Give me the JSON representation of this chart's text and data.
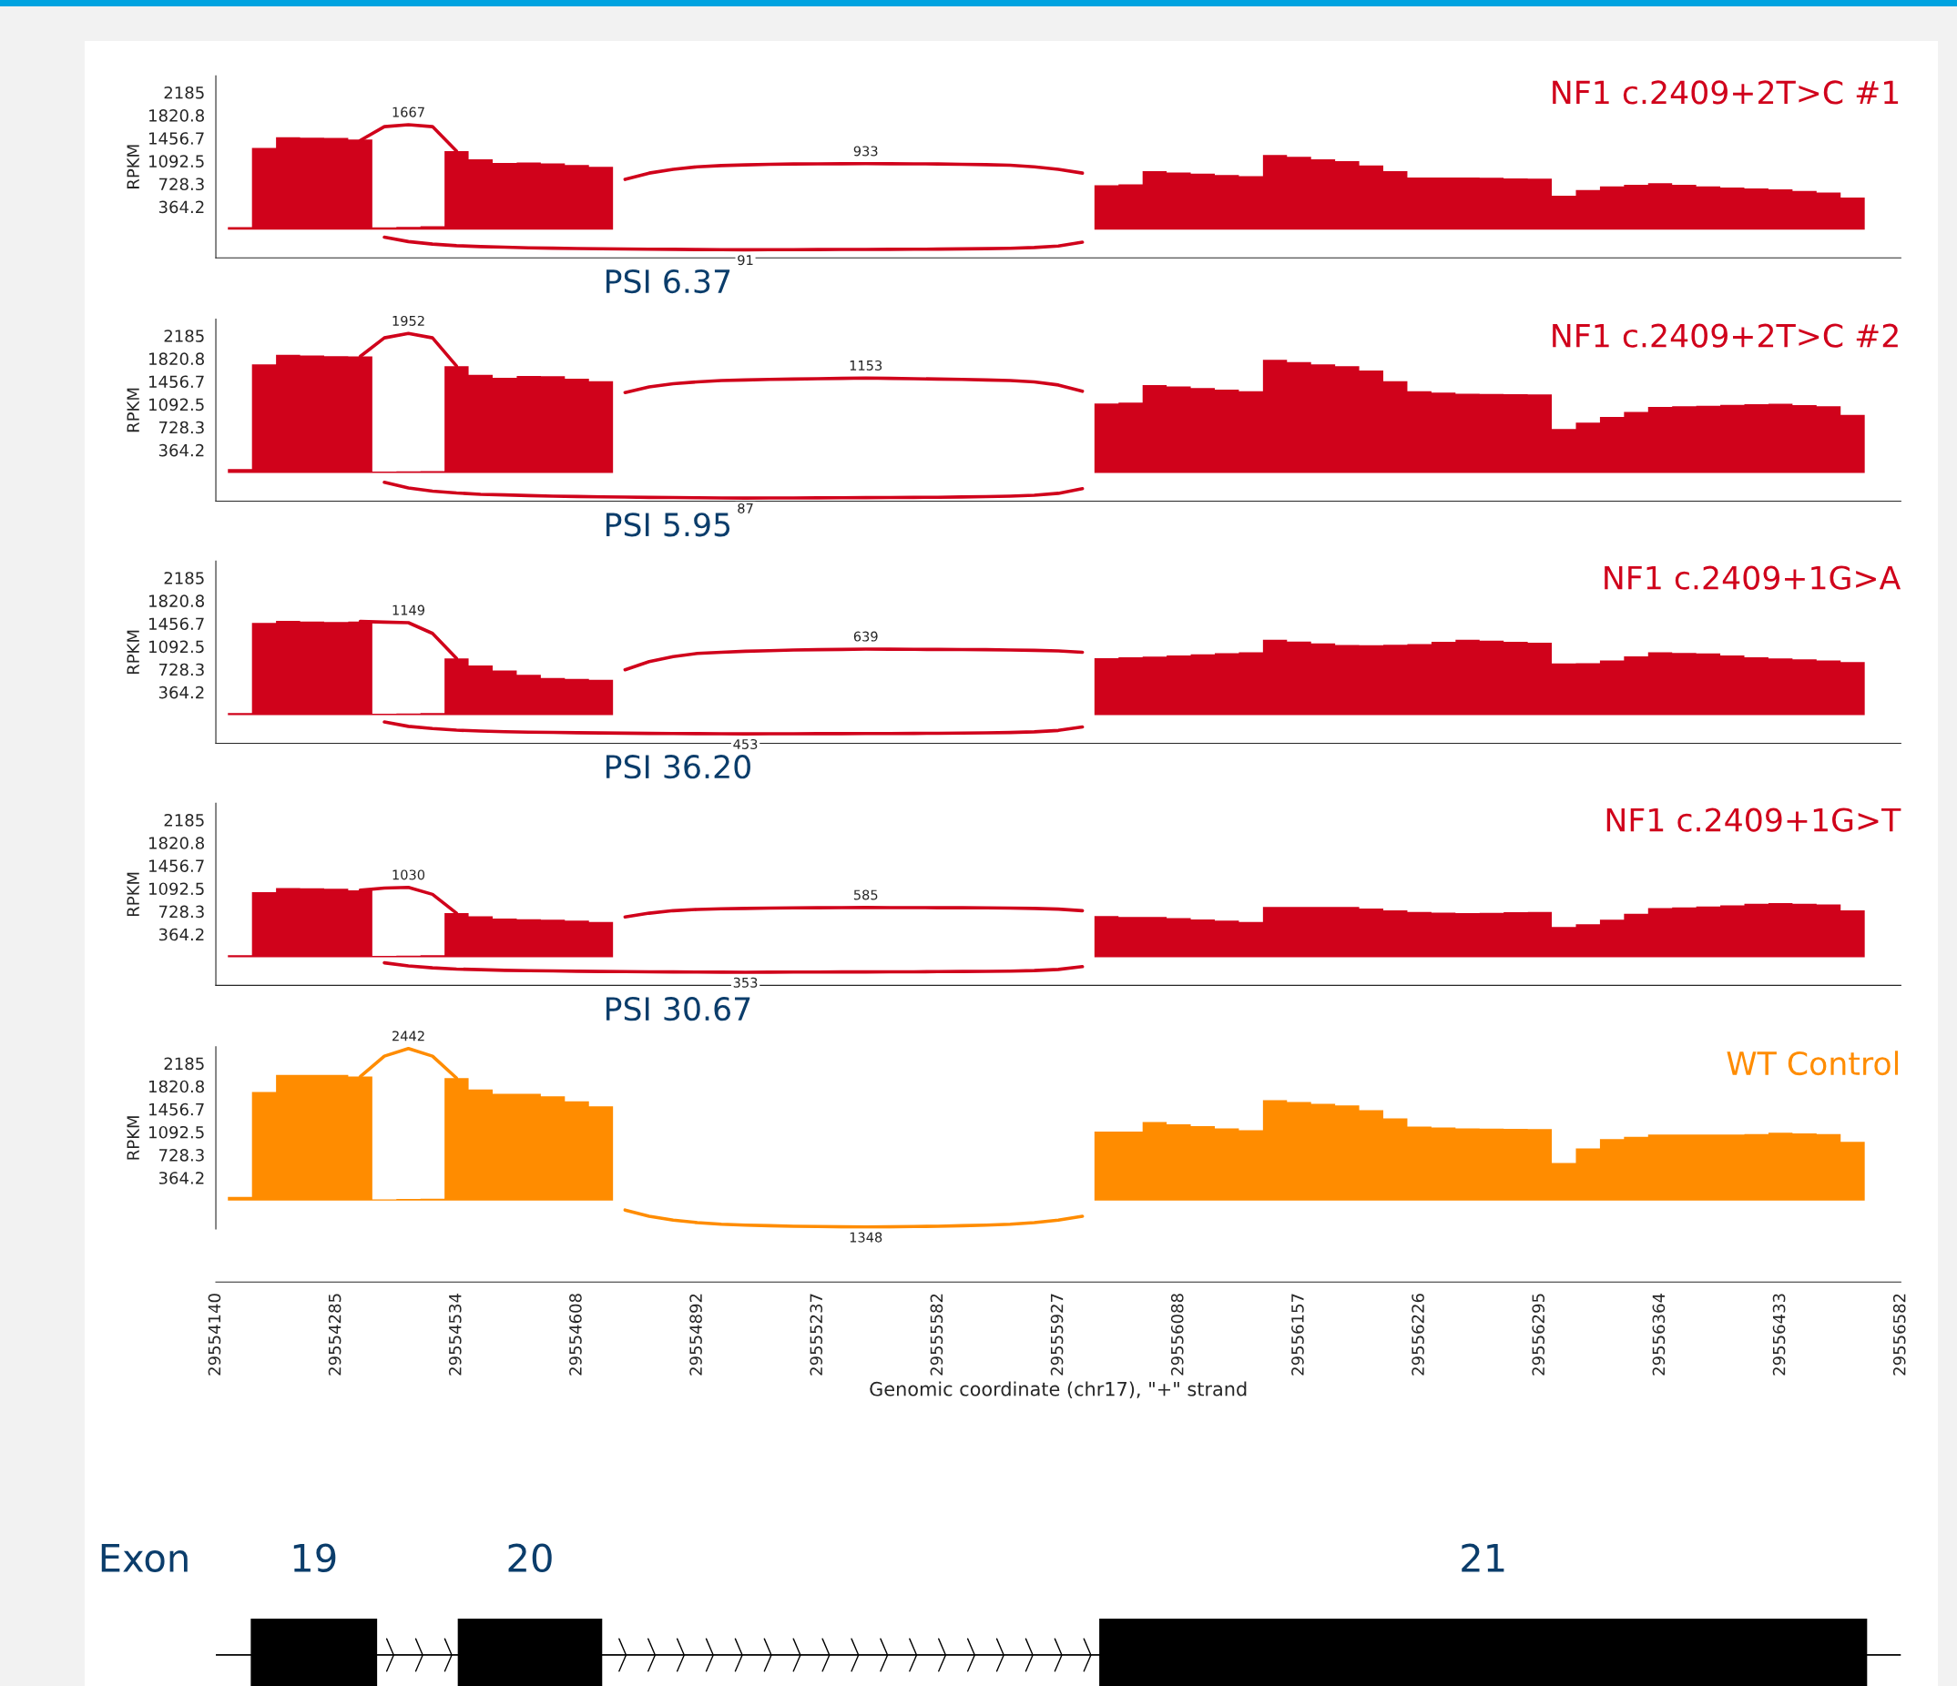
{
  "chart_data": [
    {
      "type": "area",
      "title": "NF1 c.2409+2T>C #1",
      "ylabel": "RPKM",
      "tick_labels": "y",
      "ylim": [
        -450,
        2450
      ],
      "yticks": [
        364.2,
        728.3,
        1092.5,
        1456.7,
        1820.8,
        2185
      ],
      "categories": [
        "29554140",
        null,
        null,
        null,
        null,
        "29554285",
        null,
        null,
        null,
        null,
        "29554534",
        null,
        null,
        null,
        null,
        "29554608",
        null,
        null,
        null,
        null,
        "29554892",
        null,
        null,
        null,
        null,
        "29555237",
        null,
        null,
        null,
        null,
        "29555582",
        null,
        null,
        null,
        null,
        "29555927",
        null,
        null,
        null,
        null,
        "29556088",
        null,
        null,
        null,
        null,
        "29556157",
        null,
        null,
        null,
        null,
        "29556226",
        null,
        null,
        null,
        null,
        "29556295",
        null,
        null,
        null,
        null,
        "29556364",
        null,
        null,
        null,
        null,
        "29556433",
        null,
        null,
        null,
        null,
        "29556582"
      ],
      "series": [
        {
          "color": "#d0021b",
          "values": [
            0,
            40,
            1300,
            1470,
            1465,
            1460,
            1435,
            35,
            45,
            55,
            1250,
            1120,
            1060,
            1070,
            1055,
            1030,
            1000,
            0,
            0,
            0,
            0,
            0,
            0,
            0,
            0,
            0,
            0,
            0,
            0,
            0,
            0,
            0,
            0,
            0,
            0,
            0,
            0,
            705,
            720,
            930,
            910,
            890,
            870,
            850,
            1190,
            1160,
            1120,
            1090,
            1020,
            930,
            830,
            830,
            830,
            825,
            815,
            810,
            540,
            630,
            690,
            715,
            740,
            715,
            690,
            670,
            655,
            640,
            615,
            590,
            510,
            0,
            0
          ]
        },
        {
          "type": "line",
          "color": "#d0021b",
          "values": [
            null,
            null,
            null,
            null,
            null,
            null,
            1420,
            1640,
            1670,
            1640,
            1250,
            null,
            null,
            null,
            null,
            null,
            null,
            null,
            null,
            null,
            null,
            null,
            null,
            null,
            null,
            null,
            null,
            null,
            null,
            null,
            null,
            null,
            null,
            null,
            null,
            null,
            null,
            null,
            null,
            null,
            null,
            null,
            null,
            null,
            null,
            null,
            null,
            null,
            null,
            null,
            null,
            null,
            null,
            null,
            null,
            null,
            null,
            null,
            null,
            null,
            null,
            null,
            null,
            null,
            null,
            null,
            null,
            null,
            null,
            null,
            null
          ]
        },
        {
          "type": "line",
          "color": "#d0021b",
          "values": [
            null,
            null,
            null,
            null,
            null,
            null,
            null,
            null,
            null,
            null,
            null,
            null,
            null,
            null,
            null,
            null,
            null,
            800,
            900,
            960,
            1000,
            1020,
            1030,
            1040,
            1045,
            1048,
            1049,
            1050,
            1049,
            1048,
            1045,
            1040,
            1035,
            1025,
            1000,
            960,
            900,
            null,
            null,
            null,
            null,
            null,
            null,
            null,
            null,
            null,
            null,
            null,
            null,
            null,
            null,
            null,
            null,
            null,
            null,
            null,
            null,
            null,
            null,
            null,
            null,
            null,
            null,
            null,
            null,
            null,
            null,
            null,
            null,
            null,
            null
          ]
        },
        {
          "type": "line",
          "color": "#d0021b",
          "values": [
            null,
            null,
            null,
            null,
            null,
            null,
            null,
            -120,
            -190,
            -230,
            -255,
            -270,
            -280,
            -290,
            -295,
            -300,
            -305,
            -308,
            -311,
            -314,
            -317,
            -319,
            -320,
            -319,
            -318,
            -317,
            -316,
            -315,
            -314,
            -312,
            -310,
            -307,
            -303,
            -297,
            -285,
            -260,
            -200,
            null,
            null,
            null,
            null,
            null,
            null,
            null,
            null,
            null,
            null,
            null,
            null,
            null,
            null,
            null,
            null,
            null,
            null,
            null,
            null,
            null,
            null,
            null,
            null,
            null,
            null,
            null,
            null,
            null,
            null,
            null,
            null,
            null,
            null
          ]
        }
      ],
      "annotations": [
        "1667",
        "933",
        "91",
        "PSI 6.37"
      ]
    },
    {
      "type": "area",
      "title": "NF1 c.2409+2T>C #2",
      "ylabel": "RPKM",
      "tick_labels": "y",
      "ylim": [
        -450,
        2450
      ],
      "yticks": [
        364.2,
        728.3,
        1092.5,
        1456.7,
        1820.8,
        2185
      ],
      "categories": [
        "29554140",
        null,
        null,
        null,
        null,
        "29554285",
        null,
        null,
        null,
        null,
        "29554534",
        null,
        null,
        null,
        null,
        "29554608",
        null,
        null,
        null,
        null,
        "29554892",
        null,
        null,
        null,
        null,
        "29555237",
        null,
        null,
        null,
        null,
        "29555582",
        null,
        null,
        null,
        null,
        "29555927",
        null,
        null,
        null,
        null,
        "29556088",
        null,
        null,
        null,
        null,
        "29556157",
        null,
        null,
        null,
        null,
        "29556226",
        null,
        null,
        null,
        null,
        "29556295",
        null,
        null,
        null,
        null,
        "29556364",
        null,
        null,
        null,
        null,
        "29556433",
        null,
        null,
        null,
        null,
        "29556582"
      ],
      "series": [
        {
          "color": "#d0021b",
          "values": [
            0,
            60,
            1730,
            1880,
            1870,
            1860,
            1855,
            20,
            25,
            30,
            1700,
            1560,
            1515,
            1545,
            1540,
            1500,
            1460,
            0,
            0,
            0,
            0,
            0,
            0,
            0,
            0,
            0,
            0,
            0,
            0,
            0,
            0,
            0,
            0,
            0,
            0,
            0,
            0,
            1105,
            1120,
            1400,
            1375,
            1350,
            1325,
            1300,
            1800,
            1765,
            1730,
            1700,
            1630,
            1460,
            1300,
            1280,
            1260,
            1257,
            1253,
            1250,
            700,
            800,
            890,
            970,
            1050,
            1060,
            1070,
            1085,
            1095,
            1100,
            1080,
            1060,
            925,
            0,
            0
          ]
        },
        {
          "type": "line",
          "color": "#d0021b",
          "values": [
            null,
            null,
            null,
            null,
            null,
            null,
            1855,
            2150,
            2220,
            2150,
            1700,
            null,
            null,
            null,
            null,
            null,
            null,
            null,
            null,
            null,
            null,
            null,
            null,
            null,
            null,
            null,
            null,
            null,
            null,
            null,
            null,
            null,
            null,
            null,
            null,
            null,
            null,
            null,
            null,
            null,
            null,
            null,
            null,
            null,
            null,
            null,
            null,
            null,
            null,
            null,
            null,
            null,
            null,
            null,
            null,
            null,
            null,
            null,
            null,
            null,
            null,
            null,
            null,
            null,
            null,
            null,
            null,
            null,
            null,
            null,
            null
          ]
        },
        {
          "type": "line",
          "color": "#d0021b",
          "values": [
            null,
            null,
            null,
            null,
            null,
            null,
            null,
            null,
            null,
            null,
            null,
            null,
            null,
            null,
            null,
            null,
            null,
            1280,
            1370,
            1420,
            1450,
            1470,
            1480,
            1490,
            1495,
            1500,
            1505,
            1510,
            1505,
            1500,
            1495,
            1490,
            1480,
            1470,
            1450,
            1400,
            1300,
            null,
            null,
            null,
            null,
            null,
            null,
            null,
            null,
            null,
            null,
            null,
            null,
            null,
            null,
            null,
            null,
            null,
            null,
            null,
            null,
            null,
            null,
            null,
            null,
            null,
            null,
            null,
            null,
            null,
            null,
            null,
            null,
            null,
            null
          ]
        },
        {
          "type": "line",
          "color": "#d0021b",
          "values": [
            null,
            null,
            null,
            null,
            null,
            null,
            null,
            -150,
            -240,
            -290,
            -320,
            -340,
            -350,
            -360,
            -370,
            -375,
            -380,
            -385,
            -389,
            -392,
            -395,
            -398,
            -400,
            -399,
            -398,
            -397,
            -396,
            -394,
            -392,
            -390,
            -387,
            -383,
            -378,
            -370,
            -355,
            -325,
            -250,
            null,
            null,
            null,
            null,
            null,
            null,
            null,
            null,
            null,
            null,
            null,
            null,
            null,
            null,
            null,
            null,
            null,
            null,
            null,
            null,
            null,
            null,
            null,
            null,
            null,
            null,
            null,
            null,
            null,
            null,
            null,
            null,
            null,
            null
          ]
        }
      ],
      "annotations": [
        "1952",
        "1153",
        "87",
        "PSI 5.95"
      ]
    },
    {
      "type": "area",
      "title": "NF1 c.2409+1G>A",
      "ylabel": "RPKM",
      "tick_labels": "y",
      "ylim": [
        -450,
        2450
      ],
      "yticks": [
        364.2,
        728.3,
        1092.5,
        1456.7,
        1820.8,
        2185
      ],
      "categories": [
        "29554140",
        null,
        null,
        null,
        null,
        "29554285",
        null,
        null,
        null,
        null,
        "29554534",
        null,
        null,
        null,
        null,
        "29554608",
        null,
        null,
        null,
        null,
        "29554892",
        null,
        null,
        null,
        null,
        "29555237",
        null,
        null,
        null,
        null,
        "29555582",
        null,
        null,
        null,
        null,
        "29555927",
        null,
        null,
        null,
        null,
        "29556088",
        null,
        null,
        null,
        null,
        "29556157",
        null,
        null,
        null,
        null,
        "29556226",
        null,
        null,
        null,
        null,
        "29556295",
        null,
        null,
        null,
        null,
        "29556364",
        null,
        null,
        null,
        null,
        "29556433",
        null,
        null,
        null,
        null,
        "29556582"
      ],
      "series": [
        {
          "color": "#d0021b",
          "values": [
            0,
            30,
            1465,
            1500,
            1490,
            1480,
            1490,
            20,
            25,
            30,
            900,
            790,
            710,
            640,
            590,
            575,
            560,
            0,
            0,
            0,
            0,
            0,
            0,
            0,
            0,
            0,
            0,
            0,
            0,
            0,
            0,
            0,
            0,
            0,
            0,
            0,
            0,
            905,
            920,
            930,
            950,
            965,
            985,
            1000,
            1200,
            1170,
            1140,
            1115,
            1110,
            1120,
            1130,
            1165,
            1200,
            1185,
            1165,
            1150,
            820,
            825,
            870,
            935,
            1000,
            990,
            980,
            950,
            920,
            900,
            885,
            870,
            845,
            0,
            0
          ]
        },
        {
          "type": "line",
          "color": "#d0021b",
          "values": [
            null,
            null,
            null,
            null,
            null,
            null,
            1490,
            1480,
            1470,
            1300,
            900,
            null,
            null,
            null,
            null,
            null,
            null,
            null,
            null,
            null,
            null,
            null,
            null,
            null,
            null,
            null,
            null,
            null,
            null,
            null,
            null,
            null,
            null,
            null,
            null,
            null,
            null,
            null,
            null,
            null,
            null,
            null,
            null,
            null,
            null,
            null,
            null,
            null,
            null,
            null,
            null,
            null,
            null,
            null,
            null,
            null,
            null,
            null,
            null,
            null,
            null,
            null,
            null,
            null,
            null,
            null,
            null,
            null,
            null,
            null,
            null
          ]
        },
        {
          "type": "line",
          "color": "#d0021b",
          "values": [
            null,
            null,
            null,
            null,
            null,
            null,
            null,
            null,
            null,
            null,
            null,
            null,
            null,
            null,
            null,
            null,
            null,
            720,
            850,
            930,
            980,
            1000,
            1015,
            1025,
            1035,
            1040,
            1045,
            1050,
            1048,
            1046,
            1044,
            1042,
            1040,
            1035,
            1030,
            1020,
            1000,
            null,
            null,
            null,
            null,
            null,
            null,
            null,
            null,
            null,
            null,
            null,
            null,
            null,
            null,
            null,
            null,
            null,
            null,
            null,
            null,
            null,
            null,
            null,
            null,
            null,
            null,
            null,
            null,
            null,
            null,
            null,
            null,
            null,
            null
          ]
        },
        {
          "type": "line",
          "color": "#d0021b",
          "values": [
            null,
            null,
            null,
            null,
            null,
            null,
            null,
            -110,
            -180,
            -215,
            -240,
            -255,
            -265,
            -272,
            -277,
            -282,
            -286,
            -289,
            -292,
            -294,
            -296,
            -298,
            -300,
            -299,
            -298,
            -297,
            -296,
            -295,
            -294,
            -292,
            -290,
            -287,
            -284,
            -278,
            -267,
            -245,
            -190,
            null,
            null,
            null,
            null,
            null,
            null,
            null,
            null,
            null,
            null,
            null,
            null,
            null,
            null,
            null,
            null,
            null,
            null,
            null,
            null,
            null,
            null,
            null,
            null,
            null,
            null,
            null,
            null,
            null,
            null,
            null,
            null,
            null,
            null
          ]
        }
      ],
      "annotations": [
        "1149",
        "639",
        "453",
        "PSI 36.20"
      ]
    },
    {
      "type": "area",
      "title": "NF1 c.2409+1G>T",
      "ylabel": "RPKM",
      "tick_labels": "y",
      "ylim": [
        -450,
        2450
      ],
      "yticks": [
        364.2,
        728.3,
        1092.5,
        1456.7,
        1820.8,
        2185
      ],
      "categories": [
        "29554140",
        null,
        null,
        null,
        null,
        "29554285",
        null,
        null,
        null,
        null,
        "29554534",
        null,
        null,
        null,
        null,
        "29554608",
        null,
        null,
        null,
        null,
        "29554892",
        null,
        null,
        null,
        null,
        "29555237",
        null,
        null,
        null,
        null,
        "29555582",
        null,
        null,
        null,
        null,
        "29555927",
        null,
        null,
        null,
        null,
        "29556088",
        null,
        null,
        null,
        null,
        "29556157",
        null,
        null,
        null,
        null,
        "29556226",
        null,
        null,
        null,
        null,
        "29556295",
        null,
        null,
        null,
        null,
        "29556364",
        null,
        null,
        null,
        null,
        "29556433",
        null,
        null,
        null,
        null,
        "29556582"
      ],
      "series": [
        {
          "color": "#d0021b",
          "values": [
            0,
            30,
            1035,
            1100,
            1095,
            1090,
            1065,
            20,
            25,
            30,
            700,
            650,
            615,
            605,
            595,
            580,
            560,
            0,
            0,
            0,
            0,
            0,
            0,
            0,
            0,
            0,
            0,
            0,
            0,
            0,
            0,
            0,
            0,
            0,
            0,
            0,
            0,
            655,
            640,
            640,
            620,
            600,
            580,
            560,
            800,
            800,
            800,
            800,
            775,
            745,
            720,
            710,
            700,
            705,
            715,
            720,
            480,
            525,
            595,
            690,
            780,
            790,
            805,
            825,
            850,
            860,
            850,
            840,
            745,
            0,
            0
          ]
        },
        {
          "type": "line",
          "color": "#d0021b",
          "values": [
            null,
            null,
            null,
            null,
            null,
            null,
            1065,
            1100,
            1110,
            1000,
            700,
            null,
            null,
            null,
            null,
            null,
            null,
            null,
            null,
            null,
            null,
            null,
            null,
            null,
            null,
            null,
            null,
            null,
            null,
            null,
            null,
            null,
            null,
            null,
            null,
            null,
            null,
            null,
            null,
            null,
            null,
            null,
            null,
            null,
            null,
            null,
            null,
            null,
            null,
            null,
            null,
            null,
            null,
            null,
            null,
            null,
            null,
            null,
            null,
            null,
            null,
            null,
            null,
            null,
            null,
            null,
            null,
            null,
            null,
            null,
            null
          ]
        },
        {
          "type": "line",
          "color": "#d0021b",
          "values": [
            null,
            null,
            null,
            null,
            null,
            null,
            null,
            null,
            null,
            null,
            null,
            null,
            null,
            null,
            null,
            null,
            null,
            640,
            700,
            740,
            760,
            770,
            775,
            780,
            784,
            786,
            788,
            790,
            789,
            788,
            787,
            786,
            784,
            780,
            775,
            765,
            740,
            null,
            null,
            null,
            null,
            null,
            null,
            null,
            null,
            null,
            null,
            null,
            null,
            null,
            null,
            null,
            null,
            null,
            null,
            null,
            null,
            null,
            null,
            null,
            null,
            null,
            null,
            null,
            null,
            null,
            null,
            null,
            null,
            null,
            null
          ]
        },
        {
          "type": "line",
          "color": "#d0021b",
          "values": [
            null,
            null,
            null,
            null,
            null,
            null,
            null,
            -90,
            -140,
            -170,
            -190,
            -200,
            -210,
            -215,
            -220,
            -225,
            -228,
            -231,
            -233,
            -235,
            -237,
            -239,
            -240,
            -239,
            -238,
            -237,
            -236,
            -235,
            -234,
            -233,
            -231,
            -229,
            -226,
            -222,
            -213,
            -195,
            -150,
            null,
            null,
            null,
            null,
            null,
            null,
            null,
            null,
            null,
            null,
            null,
            null,
            null,
            null,
            null,
            null,
            null,
            null,
            null,
            null,
            null,
            null,
            null,
            null,
            null,
            null,
            null,
            null,
            null,
            null,
            null,
            null,
            null,
            null
          ]
        }
      ],
      "annotations": [
        "1030",
        "585",
        "353",
        "PSI 30.67"
      ]
    },
    {
      "type": "area",
      "title": "WT Control",
      "ylabel": "RPKM",
      "xlabel": "Genomic coordinate (chr17), \"+\" strand",
      "ylim": [
        -450,
        2450
      ],
      "yticks": [
        364.2,
        728.3,
        1092.5,
        1456.7,
        1820.8,
        2185
      ],
      "categories": [
        "29554140",
        null,
        null,
        null,
        null,
        "29554285",
        null,
        null,
        null,
        null,
        "29554534",
        null,
        null,
        null,
        null,
        "29554608",
        null,
        null,
        null,
        null,
        "29554892",
        null,
        null,
        null,
        null,
        "29555237",
        null,
        null,
        null,
        null,
        "29555582",
        null,
        null,
        null,
        null,
        "29555927",
        null,
        null,
        null,
        null,
        "29556088",
        null,
        null,
        null,
        null,
        "29556157",
        null,
        null,
        null,
        null,
        "29556226",
        null,
        null,
        null,
        null,
        "29556295",
        null,
        null,
        null,
        null,
        "29556364",
        null,
        null,
        null,
        null,
        "29556433",
        null,
        null,
        null,
        null,
        "29556582"
      ],
      "series": [
        {
          "color": "#ff8c00",
          "values": [
            0,
            60,
            1730,
            2000,
            2000,
            2000,
            1975,
            20,
            25,
            30,
            1950,
            1770,
            1700,
            1700,
            1660,
            1580,
            1500,
            0,
            0,
            0,
            0,
            0,
            0,
            0,
            0,
            0,
            0,
            0,
            0,
            0,
            0,
            0,
            0,
            0,
            0,
            0,
            0,
            1100,
            1100,
            1250,
            1215,
            1185,
            1150,
            1120,
            1600,
            1570,
            1540,
            1515,
            1440,
            1310,
            1180,
            1165,
            1150,
            1147,
            1143,
            1140,
            600,
            830,
            980,
            1015,
            1050,
            1050,
            1050,
            1050,
            1060,
            1080,
            1070,
            1060,
            935,
            0,
            0
          ]
        },
        {
          "type": "line",
          "color": "#ff8c00",
          "values": [
            null,
            null,
            null,
            null,
            null,
            null,
            1975,
            2300,
            2420,
            2300,
            1950,
            null,
            null,
            null,
            null,
            null,
            null,
            null,
            null,
            null,
            null,
            null,
            null,
            null,
            null,
            null,
            null,
            null,
            null,
            null,
            null,
            null,
            null,
            null,
            null,
            null,
            null,
            null,
            null,
            null,
            null,
            null,
            null,
            null,
            null,
            null,
            null,
            null,
            null,
            null,
            null,
            null,
            null,
            null,
            null,
            null,
            null,
            null,
            null,
            null,
            null,
            null,
            null,
            null,
            null,
            null,
            null,
            null,
            null,
            null,
            null
          ]
        },
        {
          "type": "line",
          "color": "#ff8c00",
          "values": [
            null,
            null,
            null,
            null,
            null,
            null,
            null,
            null,
            null,
            null,
            null,
            null,
            null,
            null,
            null,
            null,
            null,
            -150,
            -250,
            -310,
            -350,
            -375,
            -390,
            -400,
            -408,
            -413,
            -417,
            -420,
            -417,
            -413,
            -408,
            -400,
            -390,
            -375,
            -350,
            -310,
            -250,
            null,
            null,
            null,
            null,
            null,
            null,
            null,
            null,
            null,
            null,
            null,
            null,
            null,
            null,
            null,
            null,
            null,
            null,
            null,
            null,
            null,
            null,
            null,
            null,
            null,
            null,
            null,
            null,
            null,
            null,
            null,
            null,
            null,
            null
          ]
        }
      ],
      "annotations": [
        "2442",
        "1348"
      ]
    },
    {
      "type": "other",
      "annotations": [
        "Exon",
        "19",
        "20",
        "21"
      ]
    }
  ]
}
